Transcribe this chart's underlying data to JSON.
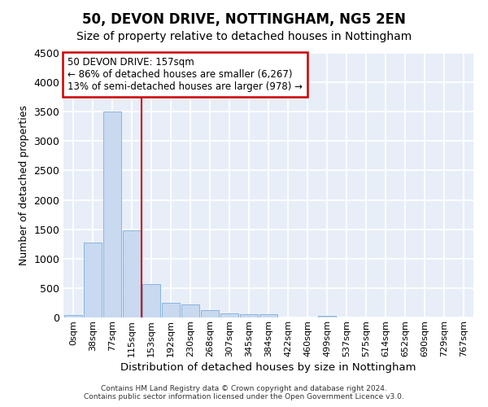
{
  "title1": "50, DEVON DRIVE, NOTTINGHAM, NG5 2EN",
  "title2": "Size of property relative to detached houses in Nottingham",
  "xlabel": "Distribution of detached houses by size in Nottingham",
  "ylabel": "Number of detached properties",
  "footnote1": "Contains HM Land Registry data © Crown copyright and database right 2024.",
  "footnote2": "Contains public sector information licensed under the Open Government Licence v3.0.",
  "bar_labels": [
    "0sqm",
    "38sqm",
    "77sqm",
    "115sqm",
    "153sqm",
    "192sqm",
    "230sqm",
    "268sqm",
    "307sqm",
    "345sqm",
    "384sqm",
    "422sqm",
    "460sqm",
    "499sqm",
    "537sqm",
    "575sqm",
    "614sqm",
    "652sqm",
    "690sqm",
    "729sqm",
    "767sqm"
  ],
  "bar_values": [
    40,
    1270,
    3500,
    1480,
    570,
    245,
    225,
    120,
    75,
    60,
    55,
    0,
    0,
    30,
    0,
    0,
    0,
    0,
    0,
    0,
    0
  ],
  "bar_color": "#c8d9f0",
  "bar_edge_color": "#8ab4da",
  "vline_x": 3.5,
  "vline_color": "#cc0000",
  "ylim": [
    0,
    4500
  ],
  "yticks": [
    0,
    500,
    1000,
    1500,
    2000,
    2500,
    3000,
    3500,
    4000,
    4500
  ],
  "annotation_line1": "50 DEVON DRIVE: 157sqm",
  "annotation_line2": "← 86% of detached houses are smaller (6,267)",
  "annotation_line3": "13% of semi-detached houses are larger (978) →",
  "annotation_box_color": "#ffffff",
  "annotation_box_edge": "#cc0000",
  "bg_color": "#e8eef8",
  "title1_fontsize": 12,
  "title2_fontsize": 10
}
